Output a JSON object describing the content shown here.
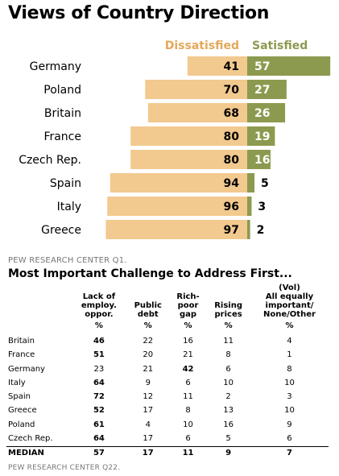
{
  "title": "Views of Country Direction",
  "chart_data": {
    "type": "bar",
    "categories": [
      "Germany",
      "Poland",
      "Britain",
      "France",
      "Czech Rep.",
      "Spain",
      "Italy",
      "Greece"
    ],
    "series": [
      {
        "name": "Dissatisfied",
        "values": [
          41,
          70,
          68,
          80,
          80,
          94,
          96,
          97
        ],
        "color": "#f2c98e"
      },
      {
        "name": "Satisfied",
        "values": [
          57,
          27,
          26,
          19,
          16,
          5,
          3,
          2
        ],
        "color": "#8c9a4f"
      }
    ],
    "title": "Views of Country Direction",
    "xlabel": "",
    "ylabel": "",
    "grid": false,
    "legend": "top-center"
  },
  "source1": "PEW RESEARCH CENTER Q1.",
  "table_title": "Most Important Challenge to Address First...",
  "table": {
    "headers": [
      [
        "Lack of",
        "employ.",
        "oppor."
      ],
      [
        "Public",
        "debt"
      ],
      [
        "Rich-",
        "poor",
        "gap"
      ],
      [
        "Rising",
        "prices"
      ],
      [
        "(Vol)",
        "All equally",
        "important/",
        "None/Other"
      ]
    ],
    "units": [
      "%",
      "%",
      "%",
      "%",
      "%"
    ],
    "rows": [
      {
        "country": "Britain",
        "values": [
          "46",
          "22",
          "16",
          "11",
          "4"
        ],
        "bold": [
          0
        ]
      },
      {
        "country": "France",
        "values": [
          "51",
          "20",
          "21",
          "8",
          "1"
        ],
        "bold": [
          0
        ]
      },
      {
        "country": "Germany",
        "values": [
          "23",
          "21",
          "42",
          "6",
          "8"
        ],
        "bold": [
          2
        ]
      },
      {
        "country": "Italy",
        "values": [
          "64",
          "9",
          "6",
          "10",
          "10"
        ],
        "bold": [
          0
        ]
      },
      {
        "country": "Spain",
        "values": [
          "72",
          "12",
          "11",
          "2",
          "3"
        ],
        "bold": [
          0
        ]
      },
      {
        "country": "Greece",
        "values": [
          "52",
          "17",
          "8",
          "13",
          "10"
        ],
        "bold": [
          0
        ]
      },
      {
        "country": "Poland",
        "values": [
          "61",
          "4",
          "10",
          "16",
          "9"
        ],
        "bold": [
          0
        ]
      },
      {
        "country": "Czech Rep.",
        "values": [
          "64",
          "17",
          "6",
          "5",
          "6"
        ],
        "bold": [
          0
        ]
      }
    ],
    "median": {
      "label": "MEDIAN",
      "values": [
        "57",
        "17",
        "11",
        "9",
        "7"
      ]
    }
  },
  "source2": "PEW RESEARCH CENTER Q22."
}
